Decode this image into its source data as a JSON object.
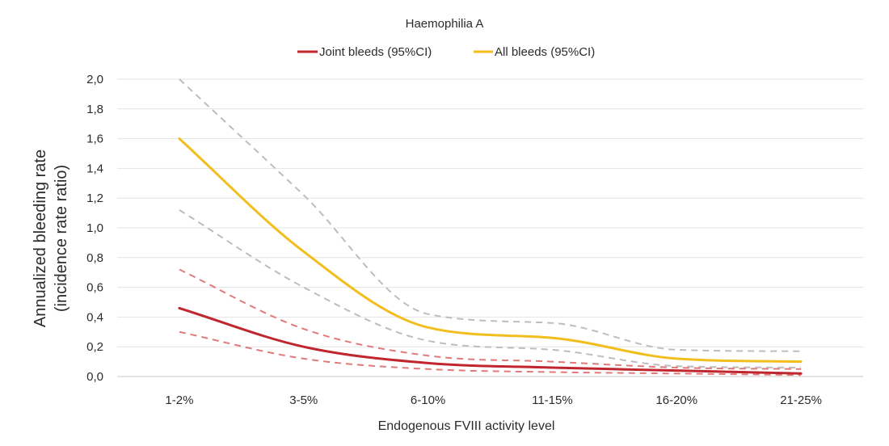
{
  "chart_data": {
    "type": "line",
    "title": "Haemophilia A",
    "xlabel": "Endogenous FVIII activity level",
    "ylabel_lines": [
      "Annualized bleeding rate",
      "(incidence rate ratio)"
    ],
    "categories": [
      "1-2%",
      "3-5%",
      "6-10%",
      "11-15%",
      "16-20%",
      "21-25%"
    ],
    "ylim": [
      0,
      2.0
    ],
    "yticks": [
      "0,0",
      "0,2",
      "0,4",
      "0,6",
      "0,8",
      "1,0",
      "1,2",
      "1,4",
      "1,6",
      "1,8",
      "2,0"
    ],
    "grid": "horizontal",
    "legend_position": "top",
    "legend": [
      {
        "label": "Joint bleeds (95%CI)",
        "color": "#c0262d"
      },
      {
        "label": "All bleeds (95%CI)",
        "color": "#f2be1e"
      }
    ],
    "series": [
      {
        "name": "Joint bleeds (95%CI)",
        "color": "#c0262d",
        "values": [
          0.46,
          0.2,
          0.09,
          0.06,
          0.04,
          0.02
        ],
        "ci_lower": [
          0.3,
          0.12,
          0.05,
          0.03,
          0.02,
          0.01
        ],
        "ci_upper": [
          0.72,
          0.32,
          0.14,
          0.1,
          0.06,
          0.05
        ],
        "ci_color": "#e07a7a"
      },
      {
        "name": "All bleeds (95%CI)",
        "color": "#f2be1e",
        "values": [
          1.6,
          0.84,
          0.33,
          0.26,
          0.12,
          0.1
        ],
        "ci_lower": [
          1.12,
          0.6,
          0.24,
          0.18,
          0.07,
          0.06
        ],
        "ci_upper": [
          2.0,
          1.22,
          0.42,
          0.36,
          0.18,
          0.17
        ],
        "ci_color": "#bdbdbd"
      }
    ]
  }
}
